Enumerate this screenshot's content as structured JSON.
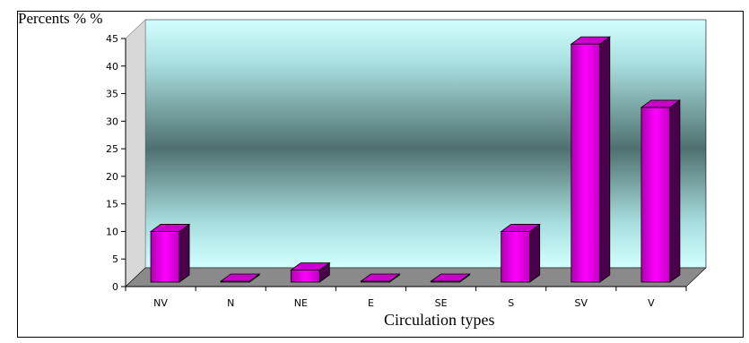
{
  "chart_data": {
    "type": "bar",
    "ylabel": "Percents  % %",
    "xlabel": "Circulation types",
    "categories": [
      "NV",
      "N",
      "NE",
      "E",
      "SE",
      "S",
      "SV",
      "V"
    ],
    "values": [
      10,
      0,
      3,
      0,
      0,
      10,
      44,
      32.5
    ],
    "ylim": [
      0,
      45
    ],
    "yticks": [
      "0",
      "5",
      "10",
      "15",
      "20",
      "25",
      "30",
      "35",
      "40",
      "45"
    ],
    "grid": false,
    "legend": "none",
    "colors": {
      "bar_front": "#ff00ff",
      "bar_side": "#4b004b",
      "bar_top": "#cc00cc",
      "wall_top": "#cfffff",
      "wall_mid": "#4f7272",
      "floor": "#8a8a8a"
    }
  }
}
